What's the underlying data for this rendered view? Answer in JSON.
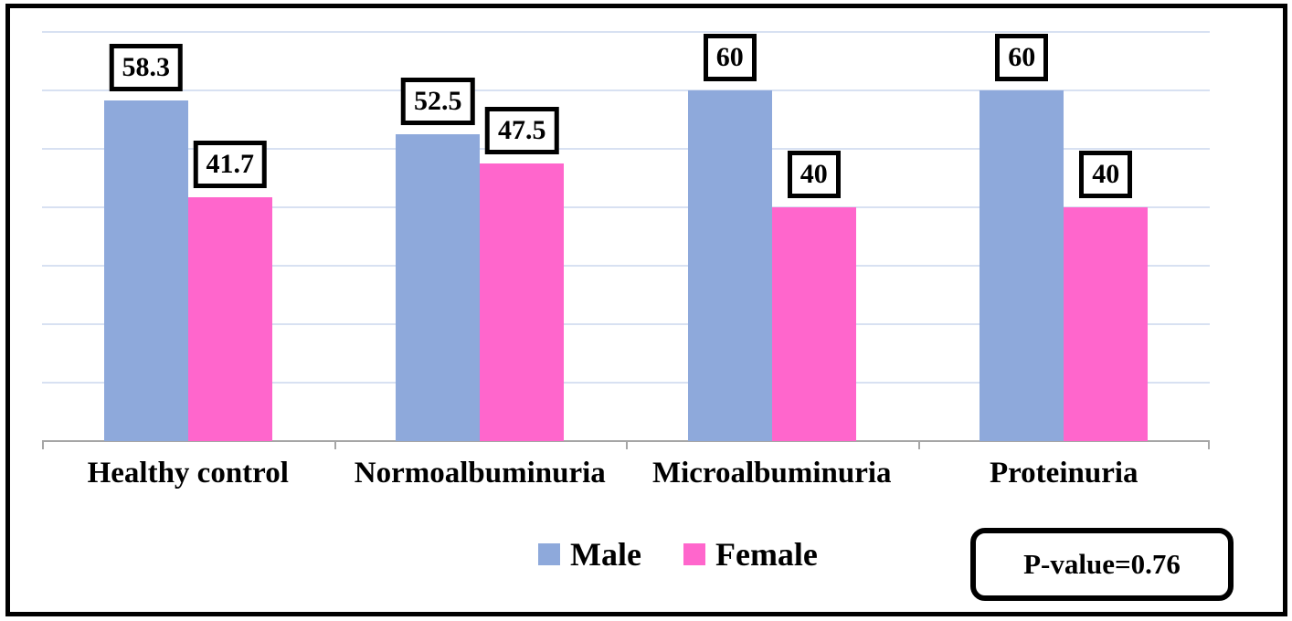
{
  "chart_data": {
    "type": "bar",
    "categories": [
      "Healthy control",
      "Normoalbuminuria",
      "Microalbuminuria",
      "Proteinuria"
    ],
    "series": [
      {
        "name": "Male",
        "color": "#8EA9DB",
        "values": [
          58.3,
          52.5,
          60,
          60
        ],
        "data_labels": [
          "58.3",
          "52.5",
          "60",
          "60"
        ]
      },
      {
        "name": "Female",
        "color": "#FF66CC",
        "values": [
          41.7,
          47.5,
          40,
          40
        ],
        "data_labels": [
          "41.7",
          "47.5",
          "40",
          "40"
        ]
      }
    ],
    "ylim": [
      0,
      70
    ],
    "gridline_step": 10,
    "grid_on": true,
    "y_axis_labels_visible": false,
    "legend_position": "bottom-center",
    "annotation": {
      "text": "P-value=0.76"
    },
    "colors": {
      "grid": "#D8E1F2",
      "axis": "#A6A6A6",
      "frame": "#000000",
      "data_label_border": "#000000",
      "background": "#FFFFFF"
    }
  }
}
